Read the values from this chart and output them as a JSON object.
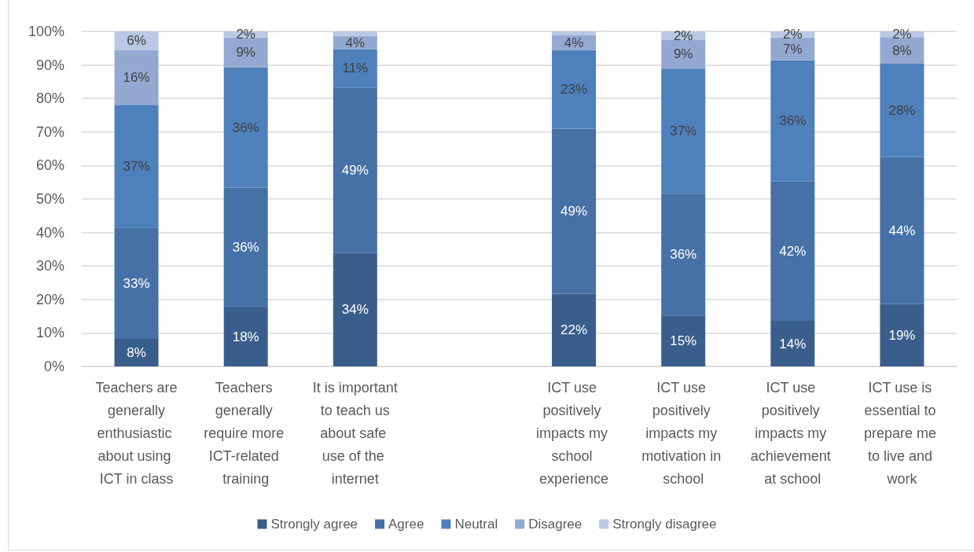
{
  "chart_data": {
    "type": "bar",
    "stacked": true,
    "categories": [
      "Teachers are generally enthusiastic about using ICT in class",
      "Teachers generally require more ICT-related training",
      "It is important to teach us about safe use of the internet",
      null,
      "ICT use positively impacts my school experience",
      "ICT use positively impacts my motivation in school",
      "ICT use positively impacts my achievement at school",
      "ICT use is essential to prepare me to live and work"
    ],
    "series": [
      {
        "name": "Strongly agree",
        "color": "#3a5e8c",
        "values": [
          8.2,
          17.6,
          33.9,
          null,
          21.7,
          15.2,
          13.6,
          18.7
        ],
        "value_labels": [
          "8%",
          "18%",
          "34%",
          null,
          "22%",
          "15%",
          "14%",
          "19%"
        ]
      },
      {
        "name": "Agree",
        "color": "#4571a6",
        "values": [
          33.3,
          35.8,
          49.4,
          null,
          49.3,
          36.4,
          41.6,
          43.8
        ],
        "value_labels": [
          "33%",
          "36%",
          "49%",
          null,
          "49%",
          "36%",
          "42%",
          "44%"
        ]
      },
      {
        "name": "Neutral",
        "color": "#4e80bc",
        "values": [
          36.6,
          35.9,
          11.4,
          null,
          23.4,
          37.3,
          36.2,
          27.9
        ],
        "value_labels": [
          "37%",
          "36%",
          "11%",
          null,
          "23%",
          "37%",
          "36%",
          "28%"
        ]
      },
      {
        "name": "Disagree",
        "color": "#94a9d2",
        "values": [
          16.4,
          8.9,
          4,
          null,
          4.4,
          8.7,
          6.8,
          7.9
        ],
        "value_labels": [
          "16%",
          "9%",
          "4%",
          null,
          "4%",
          "9%",
          "7%",
          "8%"
        ]
      },
      {
        "name": "Strongly disagree",
        "color": "#bac8e3",
        "values": [
          5.5,
          1.8,
          1.3,
          null,
          1.2,
          2.4,
          1.8,
          1.7
        ],
        "value_labels": [
          "6%",
          "2%",
          null,
          null,
          null,
          "2%",
          "2%",
          "2%"
        ]
      }
    ],
    "ylim": [
      0,
      100
    ],
    "yticks": [
      {
        "value": 0,
        "label": "0%"
      },
      {
        "value": 10,
        "label": "10%"
      },
      {
        "value": 20,
        "label": "20%"
      },
      {
        "value": 30,
        "label": "30%"
      },
      {
        "value": 40,
        "label": "40%"
      },
      {
        "value": 50,
        "label": "50%"
      },
      {
        "value": 60,
        "label": "60%"
      },
      {
        "value": 70,
        "label": "70%"
      },
      {
        "value": 80,
        "label": "80%"
      },
      {
        "value": 90,
        "label": "90%"
      },
      {
        "value": 100,
        "label": "100%"
      }
    ],
    "grid": "y",
    "legend": "bottom"
  }
}
